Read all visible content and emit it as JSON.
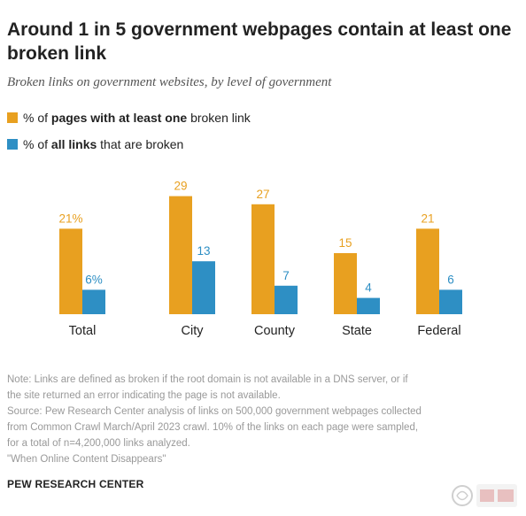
{
  "title": "Around 1 in 5 government webpages contain at least one broken link",
  "subtitle": "Broken links on government websites, by level of government",
  "legend": [
    {
      "prefix": "% of ",
      "bold": "pages with at least one",
      "suffix": " broken link",
      "color": "#e8a020"
    },
    {
      "prefix": "% of ",
      "bold": "all links",
      "suffix": " that are broken",
      "color": "#2e8fc4"
    }
  ],
  "chart_data": {
    "type": "bar",
    "categories": [
      "Total",
      "City",
      "County",
      "State",
      "Federal"
    ],
    "series": [
      {
        "name": "% of pages with at least one broken link",
        "values": [
          21,
          29,
          27,
          15,
          21
        ],
        "labels": [
          "21%",
          "29",
          "27",
          "15",
          "21"
        ],
        "color": "#e8a020"
      },
      {
        "name": "% of all links that are broken",
        "values": [
          6,
          13,
          7,
          4,
          6
        ],
        "labels": [
          "6%",
          "13",
          "7",
          "4",
          "6"
        ],
        "color": "#2e8fc4"
      }
    ],
    "ylim": [
      0,
      30
    ],
    "grid": false
  },
  "notes": [
    "Note: Links are defined as broken if the root domain is not available in a DNS server, or if",
    "the site returned an error indicating the page is not available.",
    "Source: Pew Research Center analysis of links on 500,000 government webpages collected",
    "from Common Crawl March/April 2023 crawl. 10% of the links on each page were sampled,",
    "for a total of n=4,200,000 links analyzed.",
    "\"When Online Content Disappears\""
  ],
  "brand": "PEW RESEARCH CENTER"
}
